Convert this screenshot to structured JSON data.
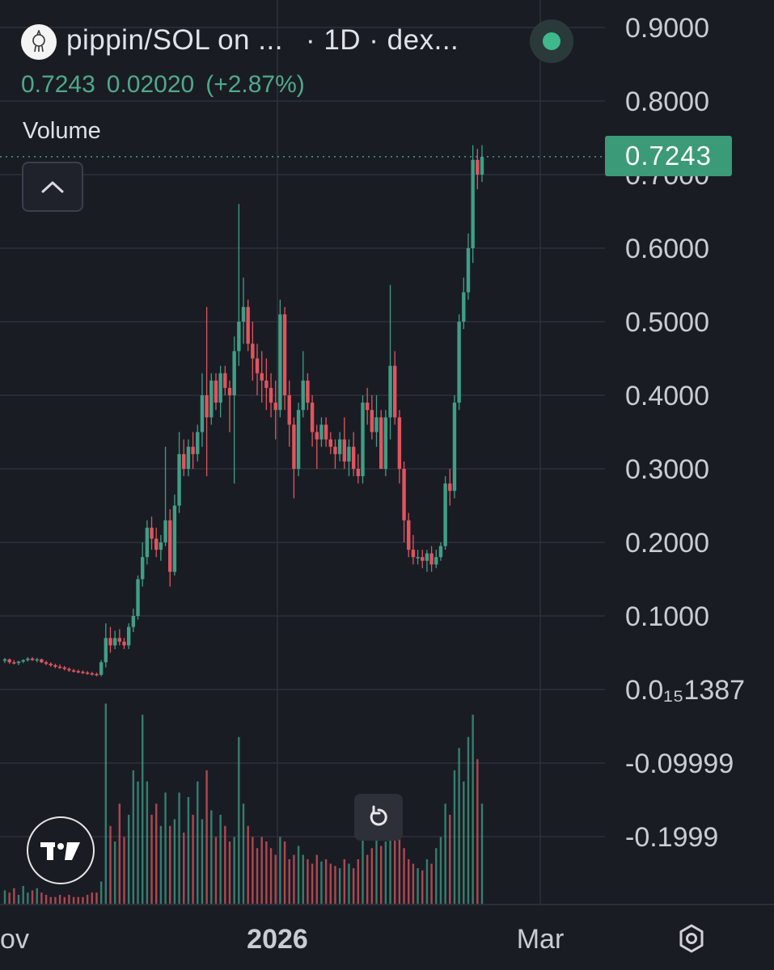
{
  "header": {
    "pair": "pippin/SOL on ...",
    "meta": "· 1D · dex...",
    "logo_icon": "pippin-token-icon",
    "status": "live"
  },
  "quote": {
    "close": "0.7243",
    "change": "0.02020",
    "change_pct": "(+2.87%)"
  },
  "volume_label": "Volume",
  "price_tag": "0.7243",
  "colors": {
    "up": "#3f9f86",
    "down": "#e0555f",
    "bg": "#1a1c24",
    "grid": "#2e3039",
    "tag": "#3b9a78",
    "text": "#c9ccd3"
  },
  "chart_data": {
    "type": "candlestick",
    "x_labels": [
      "ov",
      "2026",
      "Mar"
    ],
    "y_ticks": [
      "0.9000",
      "0.8000",
      "0.7000",
      "0.6000",
      "0.5000",
      "0.4000",
      "0.3000",
      "0.2000",
      "0.1000",
      "0.0₁₅1387",
      "-0.09999",
      "-0.1999"
    ],
    "ylim": [
      -0.25,
      0.93
    ],
    "last_price": 0.7243,
    "grid": true,
    "candles": [
      [
        0.039,
        0.043,
        0.036,
        0.041
      ],
      [
        0.041,
        0.042,
        0.035,
        0.037
      ],
      [
        0.037,
        0.04,
        0.034,
        0.036
      ],
      [
        0.036,
        0.039,
        0.033,
        0.038
      ],
      [
        0.038,
        0.041,
        0.036,
        0.04
      ],
      [
        0.04,
        0.044,
        0.038,
        0.042
      ],
      [
        0.042,
        0.044,
        0.039,
        0.04
      ],
      [
        0.04,
        0.043,
        0.037,
        0.041
      ],
      [
        0.041,
        0.042,
        0.036,
        0.037
      ],
      [
        0.037,
        0.039,
        0.033,
        0.035
      ],
      [
        0.035,
        0.037,
        0.031,
        0.033
      ],
      [
        0.033,
        0.035,
        0.029,
        0.031
      ],
      [
        0.031,
        0.034,
        0.028,
        0.03
      ],
      [
        0.03,
        0.032,
        0.026,
        0.028
      ],
      [
        0.028,
        0.03,
        0.024,
        0.026
      ],
      [
        0.026,
        0.028,
        0.023,
        0.025
      ],
      [
        0.025,
        0.027,
        0.022,
        0.024
      ],
      [
        0.024,
        0.026,
        0.021,
        0.023
      ],
      [
        0.023,
        0.025,
        0.02,
        0.022
      ],
      [
        0.022,
        0.024,
        0.019,
        0.021
      ],
      [
        0.021,
        0.023,
        0.018,
        0.02
      ],
      [
        0.02,
        0.04,
        0.018,
        0.037
      ],
      [
        0.037,
        0.09,
        0.03,
        0.07
      ],
      [
        0.07,
        0.085,
        0.05,
        0.06
      ],
      [
        0.06,
        0.08,
        0.055,
        0.07
      ],
      [
        0.07,
        0.082,
        0.06,
        0.065
      ],
      [
        0.065,
        0.07,
        0.055,
        0.06
      ],
      [
        0.06,
        0.09,
        0.055,
        0.085
      ],
      [
        0.085,
        0.11,
        0.078,
        0.1
      ],
      [
        0.1,
        0.155,
        0.095,
        0.15
      ],
      [
        0.15,
        0.2,
        0.14,
        0.18
      ],
      [
        0.18,
        0.23,
        0.17,
        0.22
      ],
      [
        0.22,
        0.235,
        0.19,
        0.205
      ],
      [
        0.205,
        0.22,
        0.18,
        0.19
      ],
      [
        0.19,
        0.21,
        0.175,
        0.2
      ],
      [
        0.2,
        0.33,
        0.195,
        0.23
      ],
      [
        0.23,
        0.245,
        0.14,
        0.16
      ],
      [
        0.16,
        0.265,
        0.155,
        0.25
      ],
      [
        0.25,
        0.35,
        0.24,
        0.32
      ],
      [
        0.32,
        0.34,
        0.29,
        0.3
      ],
      [
        0.3,
        0.34,
        0.29,
        0.33
      ],
      [
        0.33,
        0.35,
        0.3,
        0.32
      ],
      [
        0.32,
        0.36,
        0.31,
        0.35
      ],
      [
        0.35,
        0.43,
        0.33,
        0.4
      ],
      [
        0.4,
        0.52,
        0.29,
        0.37
      ],
      [
        0.37,
        0.43,
        0.36,
        0.42
      ],
      [
        0.42,
        0.43,
        0.38,
        0.39
      ],
      [
        0.39,
        0.44,
        0.37,
        0.43
      ],
      [
        0.43,
        0.44,
        0.4,
        0.41
      ],
      [
        0.41,
        0.42,
        0.35,
        0.4
      ],
      [
        0.4,
        0.48,
        0.28,
        0.46
      ],
      [
        0.46,
        0.66,
        0.44,
        0.5
      ],
      [
        0.5,
        0.56,
        0.47,
        0.52
      ],
      [
        0.52,
        0.53,
        0.46,
        0.47
      ],
      [
        0.47,
        0.5,
        0.42,
        0.45
      ],
      [
        0.45,
        0.47,
        0.4,
        0.43
      ],
      [
        0.43,
        0.46,
        0.39,
        0.42
      ],
      [
        0.42,
        0.45,
        0.38,
        0.41
      ],
      [
        0.41,
        0.43,
        0.37,
        0.39
      ],
      [
        0.39,
        0.42,
        0.34,
        0.38
      ],
      [
        0.38,
        0.53,
        0.37,
        0.51
      ],
      [
        0.51,
        0.52,
        0.38,
        0.4
      ],
      [
        0.4,
        0.42,
        0.33,
        0.36
      ],
      [
        0.36,
        0.37,
        0.26,
        0.3
      ],
      [
        0.3,
        0.39,
        0.29,
        0.38
      ],
      [
        0.38,
        0.46,
        0.37,
        0.42
      ],
      [
        0.42,
        0.43,
        0.38,
        0.39
      ],
      [
        0.39,
        0.4,
        0.33,
        0.35
      ],
      [
        0.35,
        0.36,
        0.3,
        0.34
      ],
      [
        0.34,
        0.37,
        0.33,
        0.36
      ],
      [
        0.36,
        0.37,
        0.33,
        0.34
      ],
      [
        0.34,
        0.35,
        0.32,
        0.33
      ],
      [
        0.33,
        0.34,
        0.3,
        0.32
      ],
      [
        0.32,
        0.35,
        0.31,
        0.34
      ],
      [
        0.34,
        0.37,
        0.3,
        0.31
      ],
      [
        0.31,
        0.34,
        0.29,
        0.33
      ],
      [
        0.33,
        0.35,
        0.29,
        0.3
      ],
      [
        0.3,
        0.32,
        0.28,
        0.29
      ],
      [
        0.29,
        0.4,
        0.28,
        0.39
      ],
      [
        0.39,
        0.41,
        0.36,
        0.38
      ],
      [
        0.38,
        0.4,
        0.34,
        0.35
      ],
      [
        0.35,
        0.4,
        0.33,
        0.37
      ],
      [
        0.37,
        0.38,
        0.3,
        0.3
      ],
      [
        0.3,
        0.38,
        0.29,
        0.37
      ],
      [
        0.37,
        0.55,
        0.34,
        0.44
      ],
      [
        0.44,
        0.46,
        0.36,
        0.37
      ],
      [
        0.37,
        0.38,
        0.28,
        0.3
      ],
      [
        0.3,
        0.31,
        0.2,
        0.23
      ],
      [
        0.23,
        0.24,
        0.18,
        0.19
      ],
      [
        0.19,
        0.21,
        0.17,
        0.18
      ],
      [
        0.18,
        0.19,
        0.17,
        0.18
      ],
      [
        0.18,
        0.19,
        0.165,
        0.175
      ],
      [
        0.175,
        0.19,
        0.16,
        0.185
      ],
      [
        0.185,
        0.195,
        0.16,
        0.17
      ],
      [
        0.17,
        0.19,
        0.165,
        0.18
      ],
      [
        0.18,
        0.2,
        0.175,
        0.195
      ],
      [
        0.195,
        0.29,
        0.19,
        0.28
      ],
      [
        0.28,
        0.3,
        0.25,
        0.27
      ],
      [
        0.27,
        0.4,
        0.26,
        0.39
      ],
      [
        0.39,
        0.51,
        0.38,
        0.5
      ],
      [
        0.5,
        0.56,
        0.49,
        0.54
      ],
      [
        0.54,
        0.62,
        0.53,
        0.6
      ],
      [
        0.6,
        0.74,
        0.58,
        0.72
      ],
      [
        0.72,
        0.735,
        0.68,
        0.7
      ],
      [
        0.7,
        0.74,
        0.69,
        0.724
      ]
    ],
    "volumes": [
      0.06,
      0.05,
      0.07,
      0.04,
      0.08,
      0.05,
      0.06,
      0.07,
      0.05,
      0.04,
      0.03,
      0.03,
      0.04,
      0.03,
      0.04,
      0.03,
      0.03,
      0.03,
      0.04,
      0.05,
      0.05,
      0.1,
      0.9,
      0.35,
      0.28,
      0.45,
      0.3,
      0.4,
      0.6,
      0.55,
      0.85,
      0.55,
      0.4,
      0.45,
      0.35,
      0.5,
      0.35,
      0.38,
      0.5,
      0.32,
      0.48,
      0.4,
      0.55,
      0.38,
      0.6,
      0.42,
      0.3,
      0.4,
      0.35,
      0.28,
      0.3,
      0.75,
      0.45,
      0.35,
      0.3,
      0.25,
      0.3,
      0.28,
      0.25,
      0.22,
      0.3,
      0.28,
      0.2,
      0.22,
      0.26,
      0.22,
      0.2,
      0.18,
      0.22,
      0.19,
      0.2,
      0.18,
      0.17,
      0.16,
      0.2,
      0.18,
      0.16,
      0.2,
      0.35,
      0.22,
      0.25,
      0.3,
      0.26,
      0.28,
      0.4,
      0.45,
      0.35,
      0.25,
      0.2,
      0.18,
      0.16,
      0.15,
      0.2,
      0.18,
      0.25,
      0.3,
      0.45,
      0.4,
      0.6,
      0.7,
      0.55,
      0.75,
      0.85,
      0.65,
      0.45
    ]
  }
}
